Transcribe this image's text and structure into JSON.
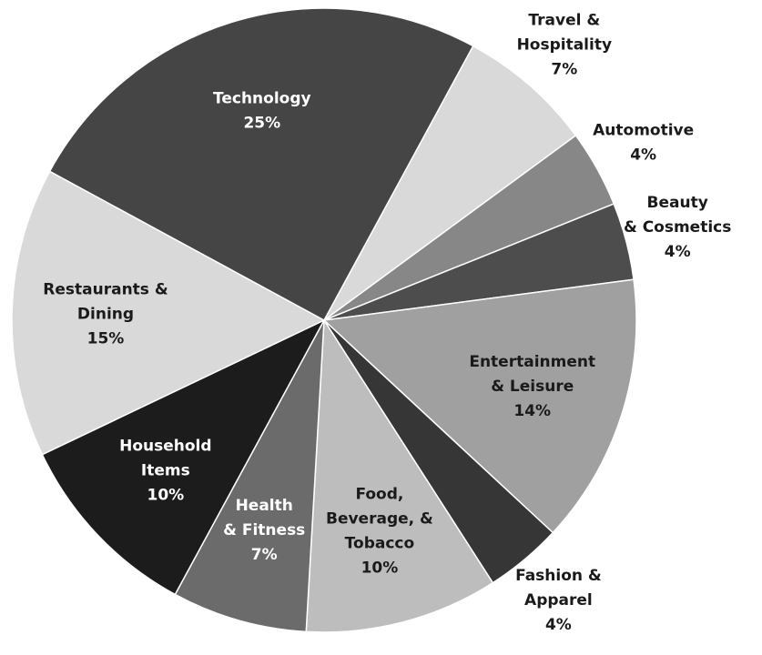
{
  "chart_data": {
    "type": "pie",
    "categories": [
      "Travel &\nHospitality",
      "Automotive",
      "Beauty\n& Cosmetics",
      "Entertainment\n& Leisure",
      "Fashion &\nApparel",
      "Food,\nBeverage, &\nTobacco",
      "Health\n& Fitness",
      "Household\nItems",
      "Restaurants &\nDining",
      "Technology"
    ],
    "values": [
      7,
      4,
      4,
      14,
      4,
      10,
      7,
      10,
      15,
      25
    ],
    "value_labels": [
      "7%",
      "4%",
      "4%",
      "14%",
      "4%",
      "10%",
      "7%",
      "10%",
      "15%",
      "25%"
    ],
    "colors": [
      "#d9d9d9",
      "#878787",
      "#4d4d4d",
      "#a0a0a0",
      "#363636",
      "#bdbdbd",
      "#6b6b6b",
      "#1c1c1c",
      "#d9d9d9",
      "#454545"
    ],
    "start_angle": 28.5
  }
}
